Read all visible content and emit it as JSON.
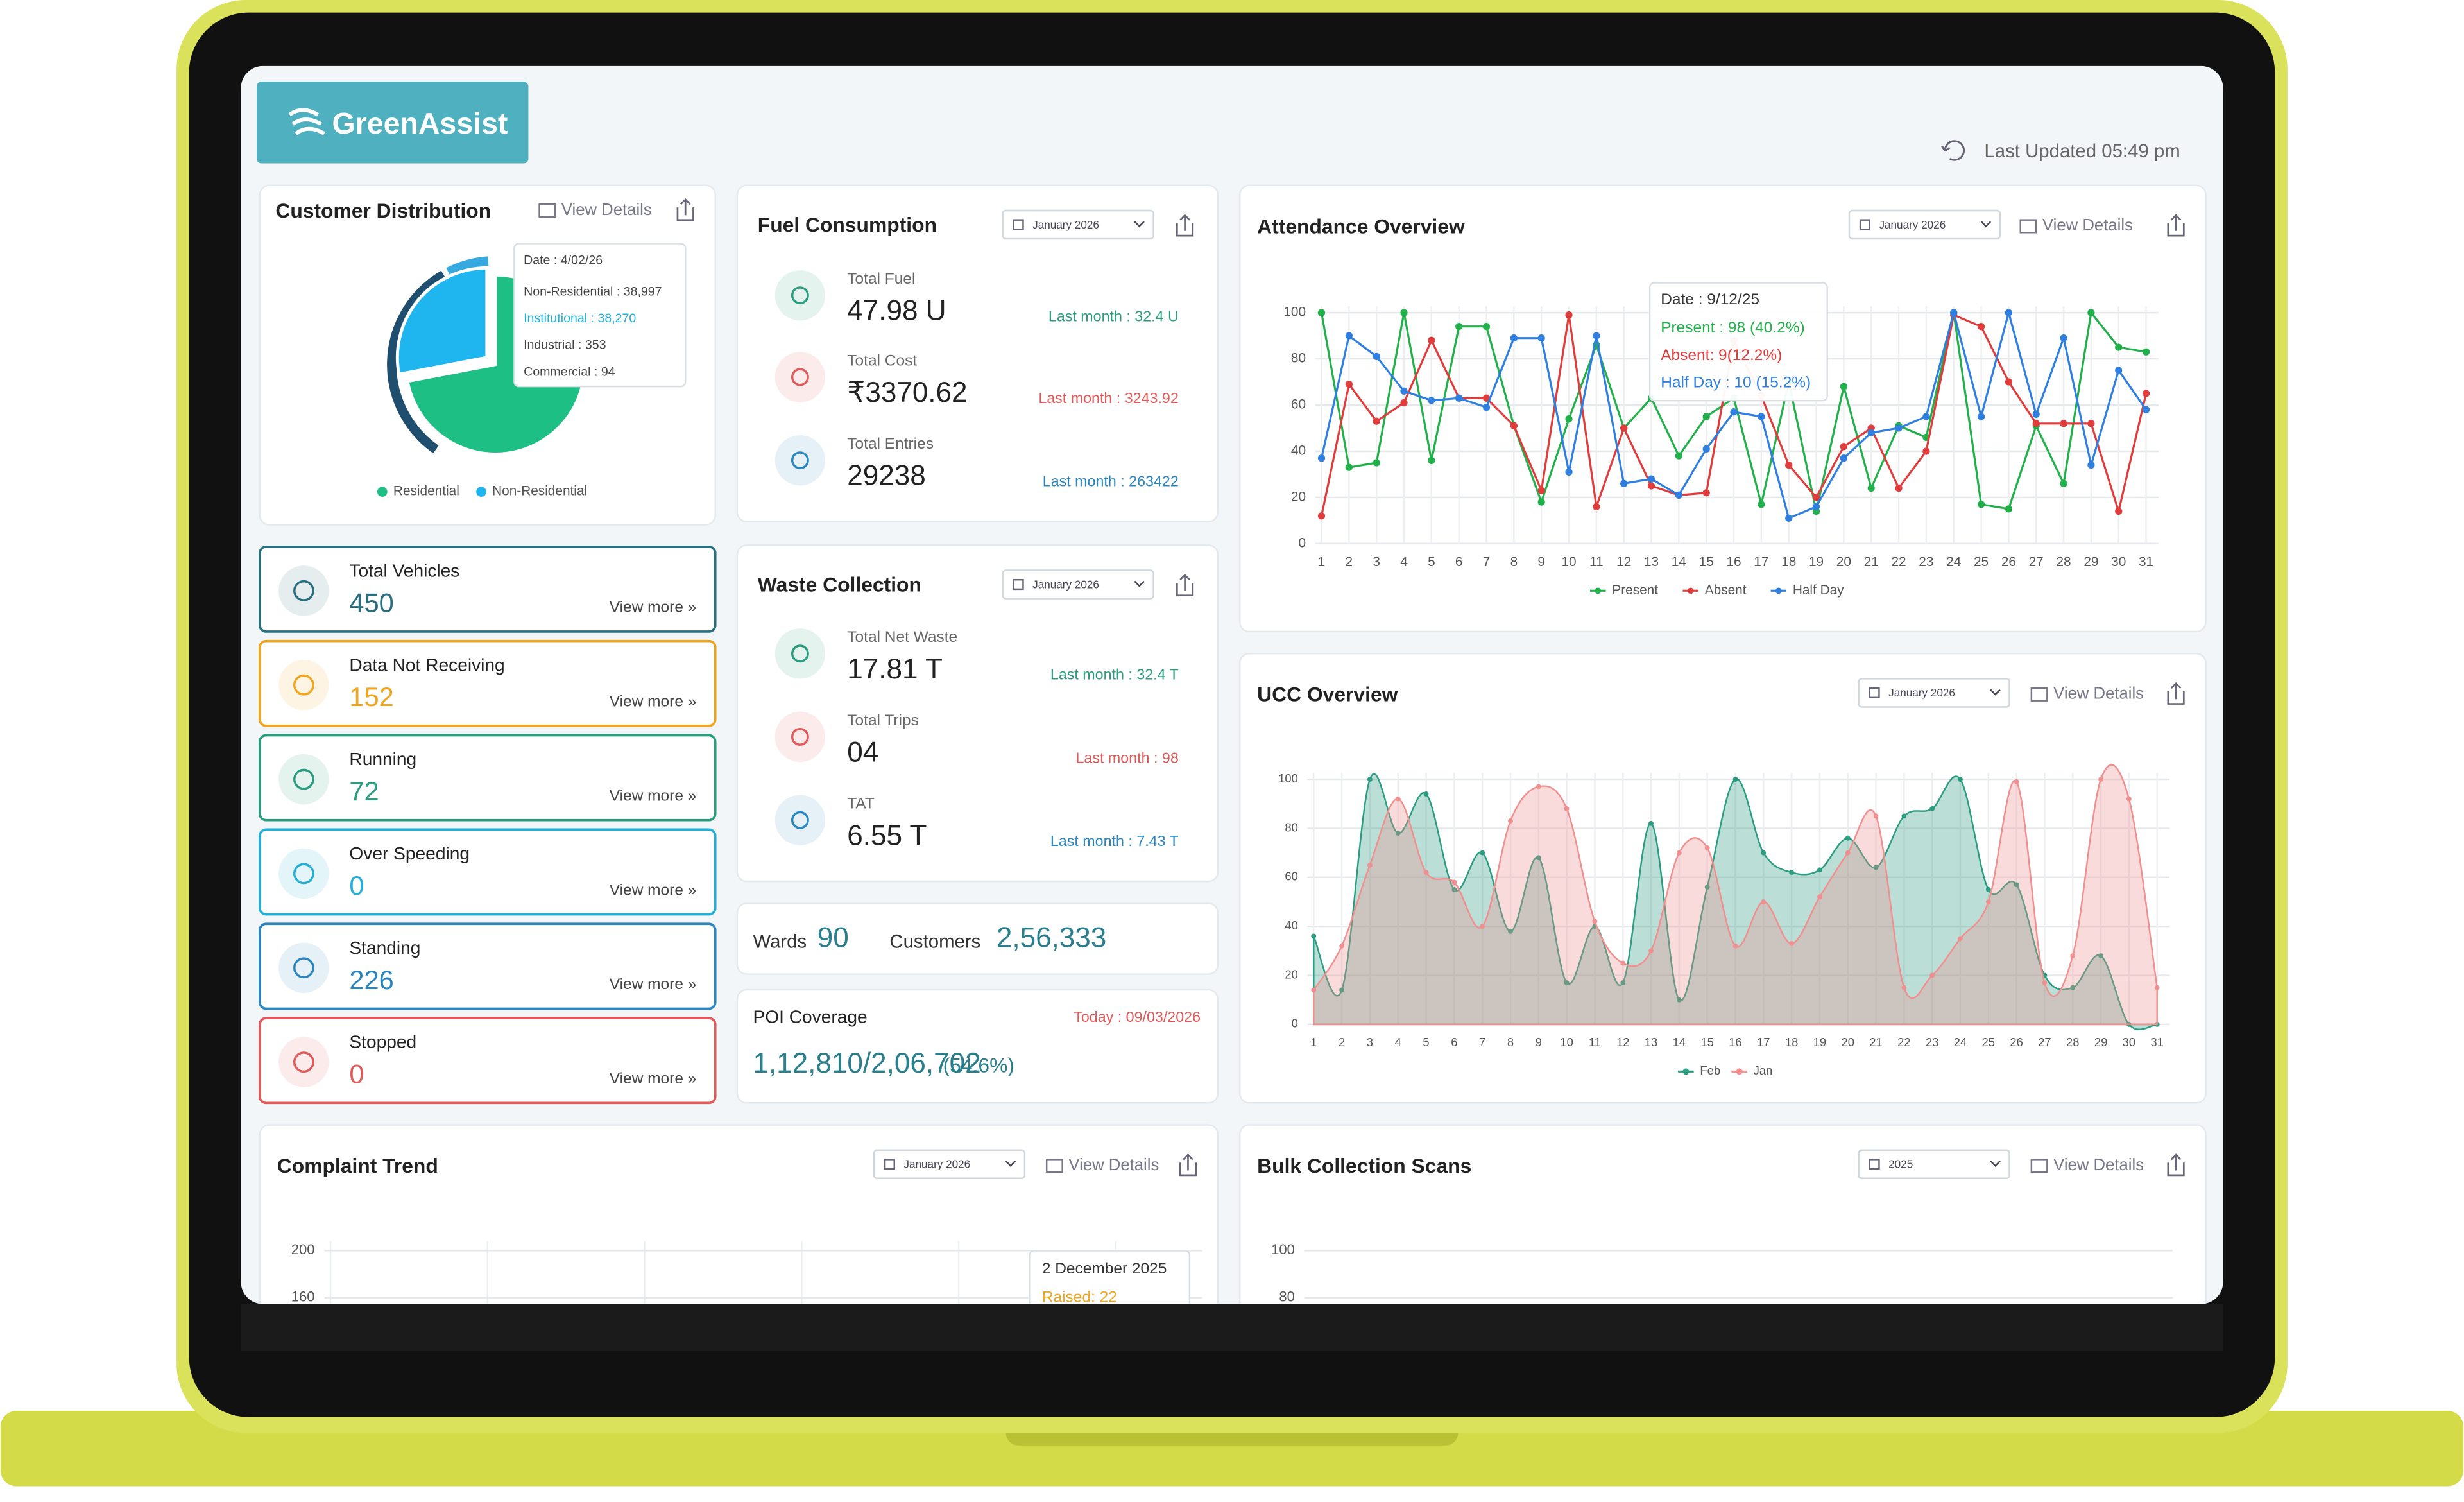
{
  "header": {
    "brand": "GreenAssist",
    "last_updated": "Last Updated 05:49 pm"
  },
  "customer_distribution": {
    "title": "Customer Distribution",
    "view_details": "View Details",
    "tooltip": {
      "date": "Date : 4/02/26",
      "rows": [
        "Non-Residential : 38,997",
        "Institutional : 38,270",
        "Industrial : 353",
        "Commercial : 94"
      ]
    },
    "chart": {
      "type": "pie",
      "series": [
        {
          "name": "Residential",
          "color": "#1dbf84",
          "value": 72
        },
        {
          "name": "Non-Residential",
          "color": "#1fb6f0",
          "value": 28
        }
      ]
    }
  },
  "status_cards": [
    {
      "label": "Total Vehicles",
      "value": 450,
      "link": "View more »",
      "color": "#2a6f7f"
    },
    {
      "label": "Data Not Receiving",
      "value": 152,
      "link": "View more »",
      "color": "#f0a51e"
    },
    {
      "label": "Running",
      "value": 72,
      "link": "View more »",
      "color": "#2b9c7e"
    },
    {
      "label": "Over Speeding",
      "value": 0,
      "link": "View more »",
      "color": "#22aed6"
    },
    {
      "label": "Standing",
      "value": 226,
      "link": "View more »",
      "color": "#2b86c0"
    },
    {
      "label": "Stopped",
      "value": 0,
      "link": "View more »",
      "color": "#e05a5a"
    }
  ],
  "fuel_consumption": {
    "title": "Fuel Consumption",
    "month": "January 2026",
    "metrics": [
      {
        "label": "Total Fuel",
        "value": "47.98 U",
        "last_month": "Last month : 32.4 U",
        "color": "#2b9c7e"
      },
      {
        "label": "Total Cost",
        "value": "₹3370.62",
        "last_month": "Last month : 3243.92",
        "color": "#e05a5a"
      },
      {
        "label": "Total Entries",
        "value": 29238,
        "last_month": "Last month : 263422",
        "color": "#2b86c0"
      }
    ]
  },
  "waste_collection": {
    "title": "Waste Collection",
    "month": "January 2026",
    "metrics": [
      {
        "label": "Total Net Waste",
        "value": "17.81 T",
        "last_month": "Last month : 32.4 T",
        "color": "#2b9c7e"
      },
      {
        "label": "Total Trips",
        "value": "04",
        "last_month": "Last month : 98",
        "color": "#e05a5a"
      },
      {
        "label": "TAT",
        "value": "6.55 T",
        "last_month": "Last month : 7.43 T",
        "color": "#2b86c0"
      }
    ]
  },
  "summary": {
    "wards_label": "Wards",
    "wards": 90,
    "customers_label": "Customers",
    "customers": "2,56,333"
  },
  "poi_coverage": {
    "title": "POI Coverage",
    "date": "Today : 09/03/2026",
    "value": "1,12,810/2,06,702",
    "percent": "(54.6%)"
  },
  "attendance_overview": {
    "title": "Attendance Overview",
    "month": "January 2026",
    "view_details": "View Details",
    "tooltip": {
      "date": "Date : 9/12/25",
      "rows": [
        "Present : 98 (40.2%)",
        "Absent: 9(12.2%)",
        "Half Day : 10 (15.2%)"
      ]
    },
    "chart": {
      "type": "line",
      "categories": [
        1,
        2,
        3,
        4,
        5,
        6,
        7,
        8,
        9,
        10,
        11,
        12,
        13,
        14,
        15,
        16,
        17,
        18,
        19,
        20,
        21,
        22,
        23,
        24,
        25,
        26,
        27,
        28,
        29,
        30,
        31
      ],
      "ylim": [
        0,
        100
      ],
      "yticks": [
        0,
        20,
        40,
        60,
        80,
        100
      ],
      "grid": true,
      "series": [
        {
          "name": "Present",
          "color": "#22b04b",
          "values": [
            100,
            33,
            35,
            100,
            36,
            94,
            94,
            51,
            18,
            54,
            86,
            50,
            63,
            38,
            55,
            63,
            17,
            70,
            14,
            68,
            24,
            51,
            46,
            100,
            17,
            15,
            51,
            26,
            100,
            85,
            83
          ]
        },
        {
          "name": "Absent",
          "color": "#e03c3c",
          "values": [
            12,
            69,
            53,
            61,
            88,
            63,
            63,
            51,
            23,
            99,
            16,
            50,
            25,
            21,
            22,
            88,
            64,
            34,
            20,
            42,
            50,
            24,
            40,
            99,
            94,
            70,
            52,
            52,
            52,
            14,
            65
          ]
        },
        {
          "name": "Half Day",
          "color": "#2f7fe0",
          "values": [
            37,
            90,
            81,
            66,
            62,
            63,
            59,
            89,
            89,
            31,
            90,
            26,
            28,
            21,
            41,
            57,
            55,
            11,
            16,
            37,
            48,
            50,
            55,
            100,
            55,
            100,
            56,
            89,
            34,
            75,
            58
          ]
        }
      ]
    }
  },
  "ucc_overview": {
    "title": "UCC Overview",
    "month": "January 2026",
    "view_details": "View Details",
    "chart": {
      "type": "area",
      "categories": [
        1,
        2,
        3,
        4,
        5,
        6,
        7,
        8,
        9,
        10,
        11,
        12,
        13,
        14,
        15,
        16,
        17,
        18,
        19,
        20,
        21,
        22,
        23,
        24,
        25,
        26,
        27,
        28,
        29,
        30,
        31
      ],
      "ylim": [
        0,
        100
      ],
      "yticks": [
        0,
        20,
        40,
        60,
        80,
        100
      ],
      "grid": true,
      "series": [
        {
          "name": "Feb",
          "color": "#2a9d80",
          "values": [
            36,
            14,
            100,
            78,
            94,
            55,
            70,
            38,
            68,
            17,
            40,
            17,
            82,
            10,
            56,
            100,
            70,
            62,
            63,
            76,
            64,
            85,
            88,
            100,
            55,
            57,
            20,
            15,
            28,
            0,
            0
          ]
        },
        {
          "name": "Jan",
          "color": "#f08f8f",
          "values": [
            14,
            32,
            65,
            92,
            62,
            58,
            40,
            83,
            97,
            88,
            42,
            25,
            30,
            70,
            72,
            32,
            50,
            33,
            52,
            70,
            85,
            15,
            20,
            35,
            50,
            99,
            17,
            28,
            100,
            92,
            15
          ]
        }
      ]
    }
  },
  "complaint_trend": {
    "title": "Complaint Trend",
    "month": "January 2026",
    "view_details": "View Details",
    "tooltip": {
      "date": "2 December 2025",
      "rows": [
        "Raised: 22"
      ]
    },
    "chart": {
      "type": "line",
      "ylim": [
        0,
        200
      ],
      "yticks": [
        200,
        160
      ],
      "grid": true
    }
  },
  "bulk_collection_scans": {
    "title": "Bulk Collection Scans",
    "year": "2025",
    "view_details": "View Details",
    "chart": {
      "type": "area",
      "ylim": [
        0,
        100
      ],
      "yticks": [
        100,
        80
      ],
      "grid": true
    }
  }
}
